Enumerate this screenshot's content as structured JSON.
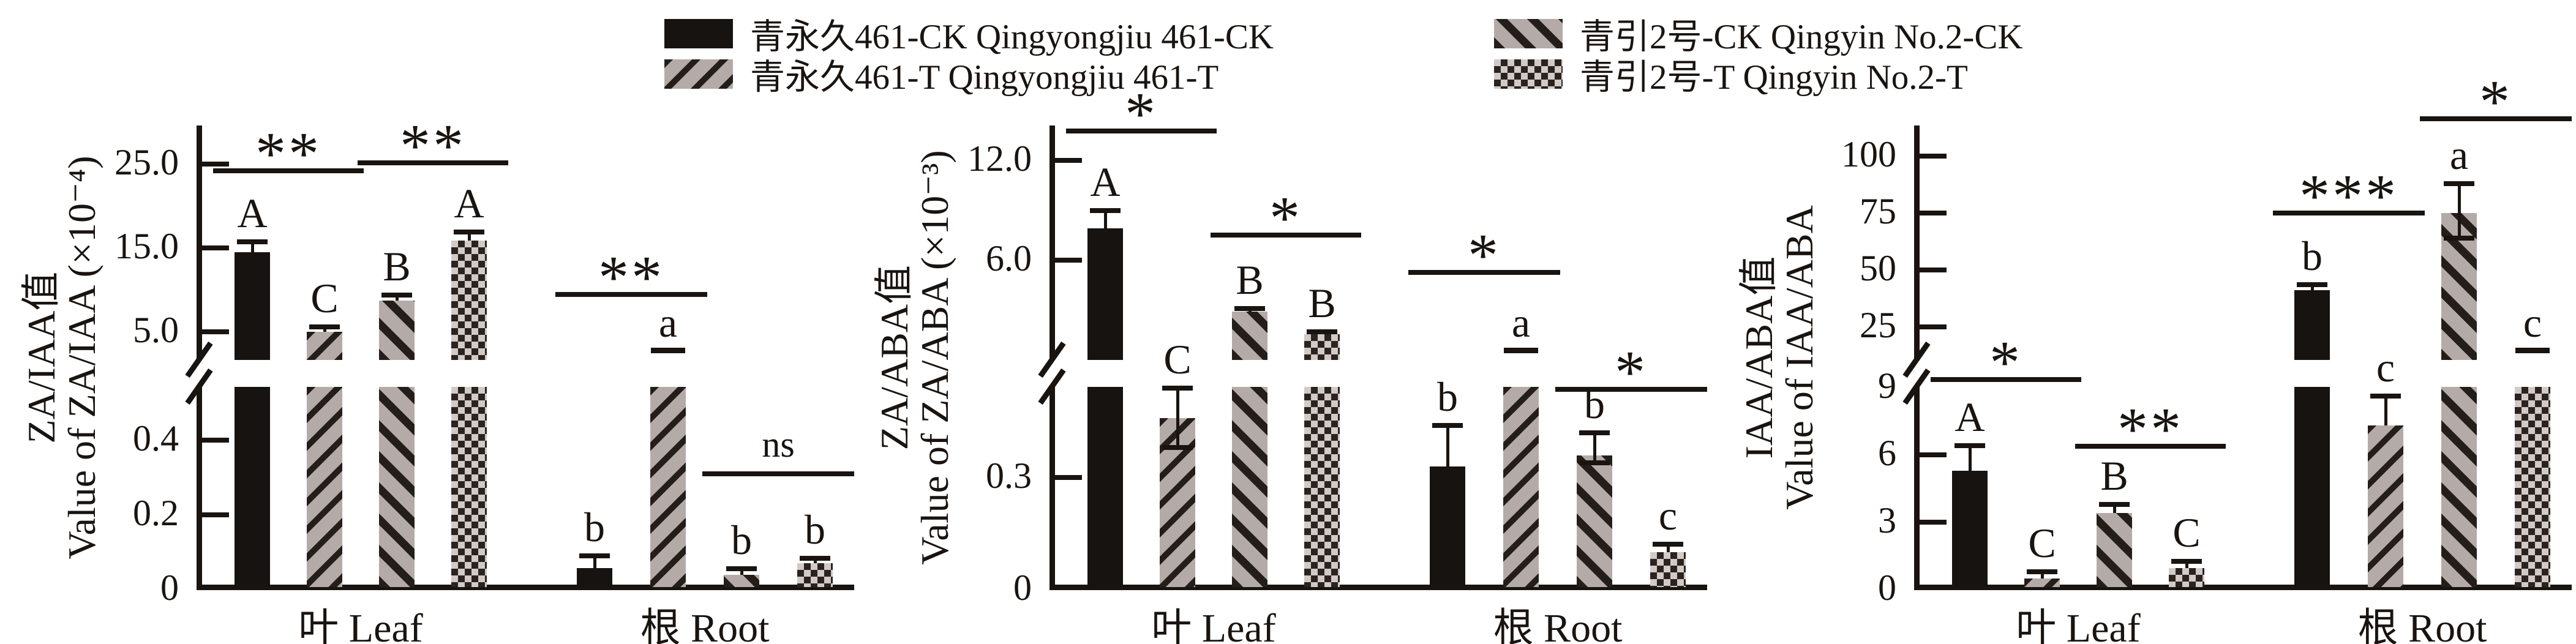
{
  "colors": {
    "ink": "#191410",
    "bar_gray": "#b4aaa7",
    "checker_light": "#d2cac6",
    "background": "#ffffff"
  },
  "legend": {
    "items": [
      {
        "label": "青永久461-CK Qingyongjiu 461-CK",
        "pattern": "solid",
        "swatch_icon": "solid-black-swatch"
      },
      {
        "label": "青永久461-T Qingyongjiu 461-T",
        "pattern": "stripe-up",
        "swatch_icon": "diagonal-stripe-swatch"
      },
      {
        "label": "青引2号-CK Qingyin No.2-CK",
        "pattern": "stripe-down",
        "swatch_icon": "dense-diagonal-stripe-swatch"
      },
      {
        "label": "青引2号-T Qingyin No.2-T",
        "pattern": "checker",
        "swatch_icon": "checkerboard-swatch"
      }
    ]
  },
  "chart_data": [
    {
      "type": "bar",
      "ylabel_zh": "ZA/IAA值",
      "ylabel_en": "Value of ZA/IAA (×10⁻⁴)",
      "axis": {
        "broken": true,
        "upper": {
          "v_top": 29.6,
          "v_bottom": 1.64,
          "ticks": [
            {
              "v": 25,
              "t": "25.0"
            },
            {
              "v": 15,
              "t": "15.0"
            },
            {
              "v": 5,
              "t": "5.0"
            }
          ]
        },
        "lower": {
          "v_top": 0.543,
          "ticks": [
            {
              "v": 0.4,
              "t": "0.4"
            },
            {
              "v": 0.2,
              "t": "0.2"
            },
            {
              "v": 0,
              "t": "0"
            }
          ]
        }
      },
      "groups": [
        {
          "label": "叶 Leaf",
          "bars": [
            {
              "series": 0,
              "value": 14.5,
              "err_hi": 15.7,
              "letter": "A"
            },
            {
              "series": 1,
              "value": 5.0,
              "err_hi": 5.6,
              "letter": "C"
            },
            {
              "series": 2,
              "value": 8.7,
              "err_hi": 9.4,
              "letter": "B"
            },
            {
              "series": 3,
              "value": 15.9,
              "err_hi": 16.9,
              "letter": "A"
            }
          ]
        },
        {
          "label": "根 Root",
          "bars": [
            {
              "series": 0,
              "value": 0.058,
              "err_hi": 0.09,
              "letter": "b"
            },
            {
              "series": 1,
              "value": null,
              "clipped": true,
              "letter": "a"
            },
            {
              "series": 2,
              "value": 0.04,
              "err_hi": 0.056,
              "letter": "b"
            },
            {
              "series": 3,
              "value": 0.07,
              "err_hi": 0.084,
              "letter": "b"
            }
          ]
        }
      ],
      "sig": [
        {
          "group": 0,
          "from": 0,
          "to": 1,
          "label": "**",
          "y": 275
        },
        {
          "group": 0,
          "from": 2,
          "to": 3,
          "label": "**",
          "y": 262
        },
        {
          "group": 1,
          "from": 0,
          "to": 1,
          "label": "**",
          "y": 477
        },
        {
          "group": 1,
          "from": 2,
          "to": 3,
          "label": "ns",
          "y": 770
        }
      ]
    },
    {
      "type": "bar",
      "ylabel_zh": "ZA/ABA值",
      "ylabel_en": "Value of ZA/ABA (×10⁻³)",
      "axis": {
        "broken": true,
        "upper": {
          "v_top": 14.1,
          "v_bottom": 0.0,
          "ticks": [
            {
              "v": 12,
              "t": "12.0"
            },
            {
              "v": 6,
              "t": "6.0"
            }
          ]
        },
        "lower": {
          "v_top": 0.543,
          "ticks": [
            {
              "v": 0.3,
              "t": "0.3"
            },
            {
              "v": 0,
              "t": "0"
            }
          ]
        }
      },
      "groups": [
        {
          "label": "叶 Leaf",
          "bars": [
            {
              "series": 0,
              "value": 7.9,
              "err_hi": 9.0,
              "letter": "A"
            },
            {
              "series": 1,
              "value": 0.46,
              "err_hi": 0.54,
              "err_lo": 0.38,
              "letter": "C"
            },
            {
              "series": 2,
              "value": 2.9,
              "err_hi": 3.1,
              "letter": "B"
            },
            {
              "series": 3,
              "value": 1.55,
              "err_hi": 1.68,
              "letter": "B"
            }
          ]
        },
        {
          "label": "根 Root",
          "bars": [
            {
              "series": 0,
              "value": 0.33,
              "err_hi": 0.44,
              "letter": "b"
            },
            {
              "series": 1,
              "value": null,
              "clipped": true,
              "letter": "a"
            },
            {
              "series": 2,
              "value": 0.36,
              "err_hi": 0.42,
              "err_lo": 0.34,
              "letter": "b"
            },
            {
              "series": 3,
              "value": 0.1,
              "err_hi": 0.122,
              "letter": "c"
            }
          ]
        }
      ],
      "sig": [
        {
          "group": 0,
          "from": 0,
          "to": 1,
          "label": "*",
          "y": 210
        },
        {
          "group": 0,
          "from": 2,
          "to": 3,
          "label": "*",
          "y": 380
        },
        {
          "group": 1,
          "from": 0,
          "to": 1,
          "label": "*",
          "y": 441
        },
        {
          "group": 1,
          "from": 2,
          "to": 3,
          "label": "*",
          "y": 632
        }
      ]
    },
    {
      "type": "bar",
      "ylabel_zh": "IAA/ABA值",
      "ylabel_en": "Value of IAA/ABA",
      "axis": {
        "broken": true,
        "upper": {
          "v_top": 113.4,
          "v_bottom": 10.5,
          "ticks": [
            {
              "v": 100,
              "t": "100"
            },
            {
              "v": 75,
              "t": "75"
            },
            {
              "v": 50,
              "t": "50"
            },
            {
              "v": 25,
              "t": "25"
            }
          ]
        },
        "lower": {
          "v_top": 9.02,
          "ticks": [
            {
              "v": 9,
              "t": "9",
              "mark": false
            },
            {
              "v": 6,
              "t": "6"
            },
            {
              "v": 3,
              "t": "3"
            },
            {
              "v": 0,
              "t": "0"
            }
          ]
        }
      },
      "groups": [
        {
          "label": "叶 Leaf",
          "bars": [
            {
              "series": 0,
              "value": 5.3,
              "err_hi": 6.4,
              "letter": "A"
            },
            {
              "series": 1,
              "value": 0.5,
              "err_hi": 0.78,
              "letter": "C"
            },
            {
              "series": 2,
              "value": 3.4,
              "err_hi": 3.8,
              "letter": "B"
            },
            {
              "series": 3,
              "value": 0.95,
              "err_hi": 1.25,
              "letter": "C"
            }
          ]
        },
        {
          "label": "根 Root",
          "bars": [
            {
              "series": 0,
              "value": 41,
              "err_hi": 43.5,
              "letter": "b"
            },
            {
              "series": 1,
              "value": 7.3,
              "err_hi": 8.6,
              "letter": "c"
            },
            {
              "series": 2,
              "value": 75,
              "err_hi": 88,
              "err_lo": 64,
              "letter": "a"
            },
            {
              "series": 3,
              "value": null,
              "clipped": true,
              "letter": "c"
            }
          ]
        }
      ],
      "sig": [
        {
          "group": 0,
          "from": 0,
          "to": 1,
          "label": "*",
          "y": 616
        },
        {
          "group": 0,
          "from": 2,
          "to": 3,
          "label": "**",
          "y": 725
        },
        {
          "group": 1,
          "from": 0,
          "to": 1,
          "label": "***",
          "y": 344
        },
        {
          "group": 1,
          "from": 2,
          "to": 3,
          "label": "*",
          "y": 190
        }
      ]
    }
  ]
}
